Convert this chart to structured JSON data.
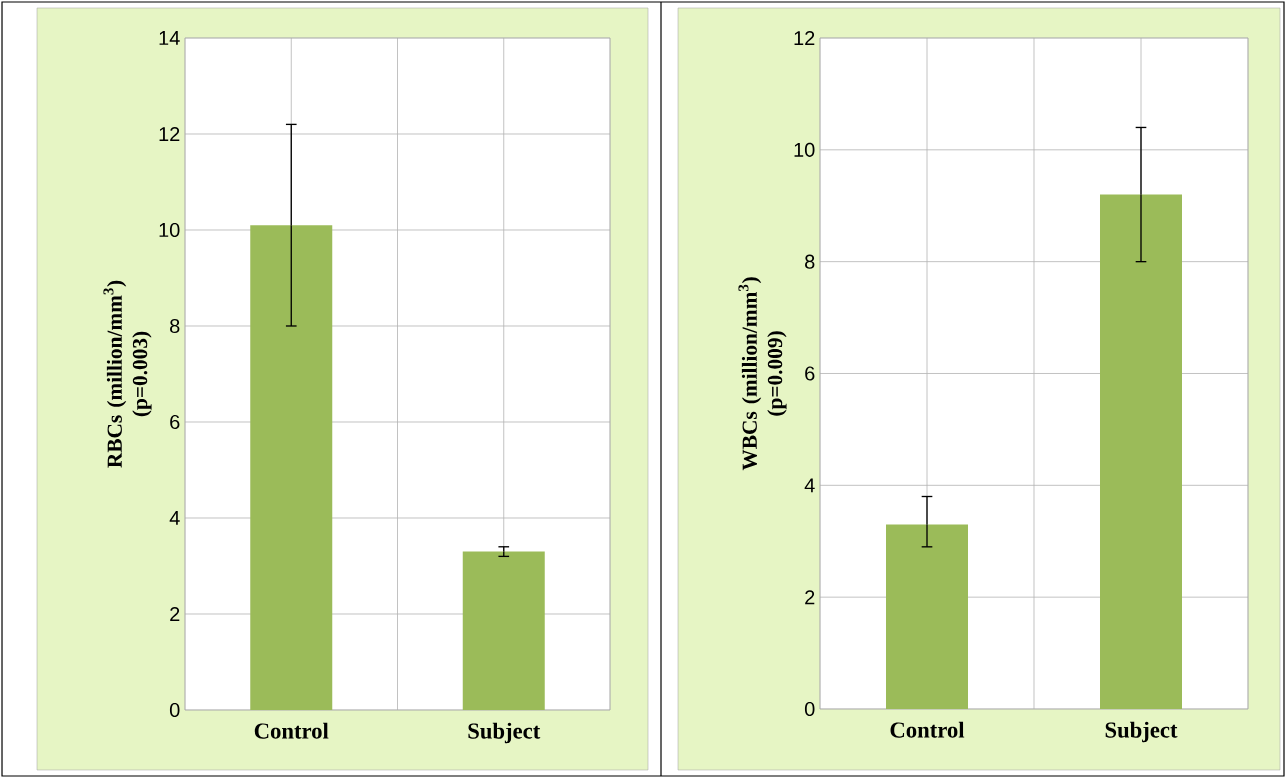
{
  "chart_data": [
    {
      "type": "bar",
      "ylabel": "RBCs (million/mm$^{3}$) (p=0.003)",
      "categories": [
        "Control",
        "Subject"
      ],
      "values": [
        10.1,
        3.3
      ],
      "errors": [
        [
          8.0,
          12.2
        ],
        [
          3.2,
          3.4
        ]
      ],
      "color": "#9bbb59",
      "ylim": [
        0,
        14
      ],
      "yticks": [
        0,
        2,
        4,
        6,
        8,
        10,
        12,
        14
      ],
      "grid": true
    },
    {
      "type": "bar",
      "ylabel": "WBCs (million/mm$^{3}$) (p=0.009)",
      "categories": [
        "Control",
        "Subject"
      ],
      "values": [
        3.3,
        9.2
      ],
      "errors": [
        [
          2.9,
          3.8
        ],
        [
          8.0,
          10.4
        ]
      ],
      "color": "#9bbb59",
      "ylim": [
        0,
        12
      ],
      "yticks": [
        0,
        2,
        4,
        6,
        8,
        10,
        12
      ],
      "grid": true
    }
  ]
}
